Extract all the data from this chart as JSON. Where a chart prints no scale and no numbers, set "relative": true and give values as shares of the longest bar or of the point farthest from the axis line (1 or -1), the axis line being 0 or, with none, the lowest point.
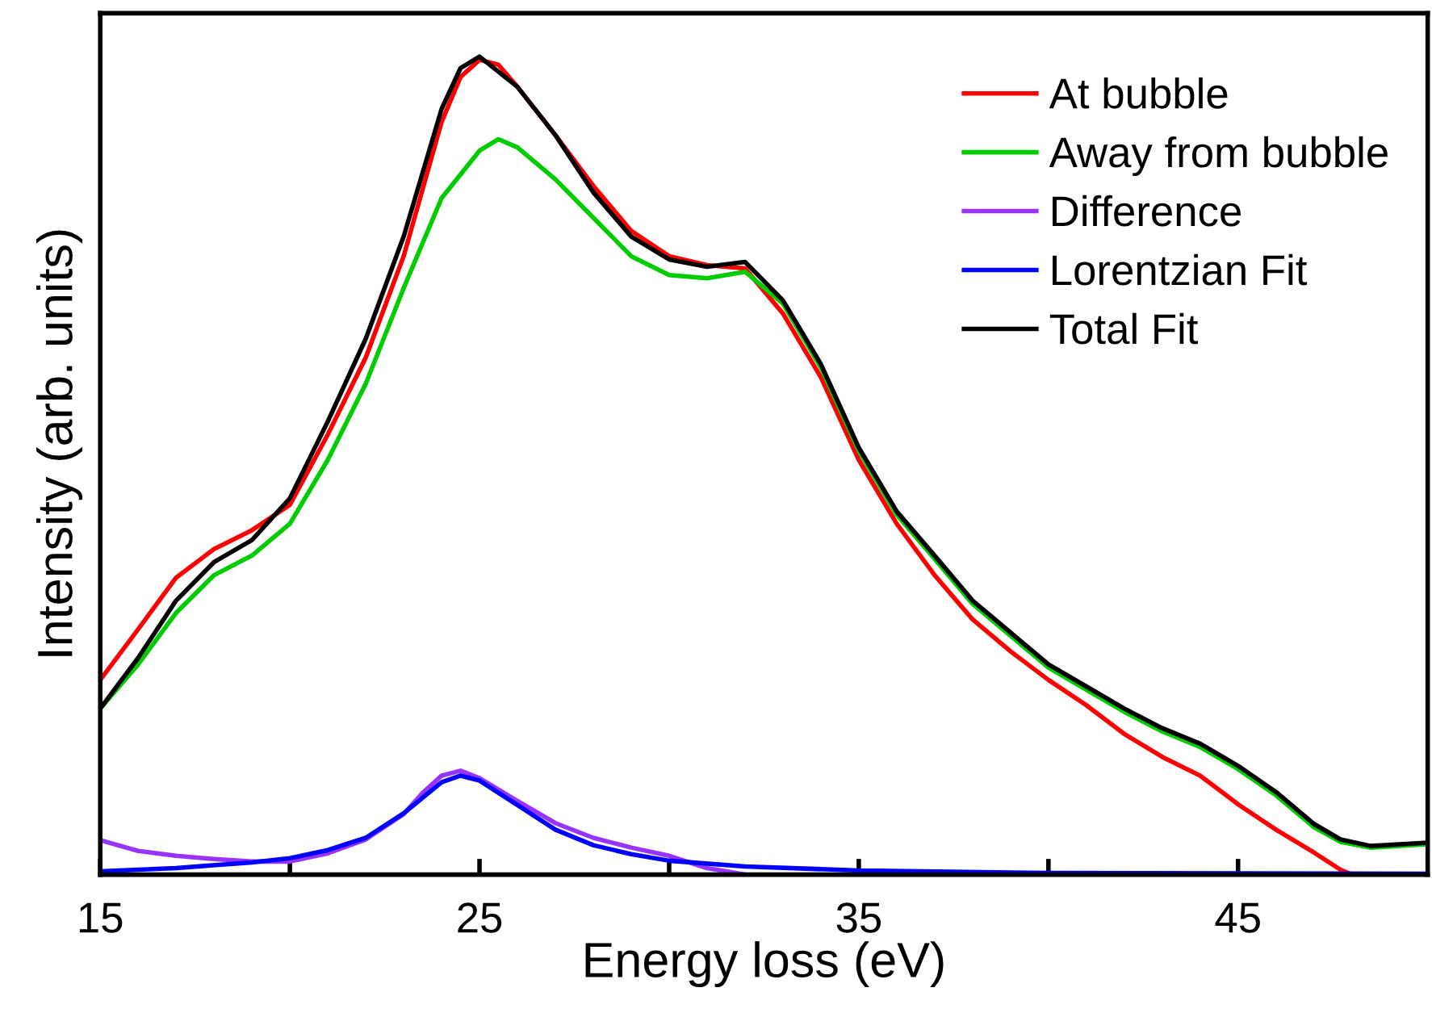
{
  "chart_data": {
    "type": "line",
    "xlabel": "Energy loss (eV)",
    "ylabel": "Intensity (arb. units)",
    "relative": true,
    "tick_labels": "x",
    "legend": "top right",
    "grid": false,
    "xlim": [
      15,
      50
    ],
    "xticks": [
      15,
      {
        "value": 20,
        "label": null
      },
      25,
      {
        "value": 30,
        "label": null
      },
      35,
      {
        "value": 40,
        "label": null
      },
      45
    ],
    "series": [
      {
        "name": "At bubble",
        "color": "#ff0000",
        "x": [
          15,
          16,
          17,
          18,
          19,
          20,
          21,
          22,
          23,
          24,
          24.5,
          25,
          25.5,
          26,
          27,
          28,
          29,
          30,
          31,
          32,
          33,
          34,
          35,
          36,
          37,
          38,
          39,
          40,
          41,
          42,
          43,
          44,
          45,
          46,
          47,
          47.7,
          48,
          50
        ],
        "values": [
          0.238,
          0.3,
          0.363,
          0.398,
          0.421,
          0.452,
          0.538,
          0.632,
          0.756,
          0.92,
          0.975,
          0.996,
          0.99,
          0.963,
          0.904,
          0.842,
          0.787,
          0.756,
          0.745,
          0.741,
          0.686,
          0.608,
          0.507,
          0.429,
          0.366,
          0.312,
          0.273,
          0.238,
          0.207,
          0.172,
          0.144,
          0.121,
          0.086,
          0.055,
          0.027,
          0.006,
          0,
          0
        ]
      },
      {
        "name": "Away from bubble",
        "color": "#00cc00",
        "x": [
          15,
          16,
          17,
          18,
          19,
          20,
          21,
          22,
          23,
          24,
          25,
          25.5,
          26,
          27,
          28,
          29,
          30,
          31,
          32,
          33,
          34,
          35,
          36,
          37,
          38,
          39,
          40,
          41,
          42,
          43,
          44,
          45,
          46,
          47,
          47.7,
          48.5,
          50
        ],
        "values": [
          0.203,
          0.257,
          0.32,
          0.366,
          0.39,
          0.429,
          0.507,
          0.6,
          0.717,
          0.827,
          0.885,
          0.899,
          0.889,
          0.85,
          0.803,
          0.756,
          0.733,
          0.729,
          0.737,
          0.698,
          0.62,
          0.518,
          0.44,
          0.386,
          0.331,
          0.292,
          0.253,
          0.226,
          0.199,
          0.175,
          0.156,
          0.129,
          0.097,
          0.058,
          0.04,
          0.033,
          0.037
        ]
      },
      {
        "name": "Difference",
        "color": "#9933ff",
        "x": [
          15,
          16,
          17,
          18,
          19,
          20,
          21,
          22,
          23,
          23.5,
          24,
          24.5,
          25,
          26,
          27,
          28,
          29,
          30,
          31,
          32
        ],
        "values": [
          0.042,
          0.029,
          0.023,
          0.019,
          0.016,
          0.016,
          0.026,
          0.043,
          0.074,
          0.1,
          0.121,
          0.127,
          0.118,
          0.09,
          0.063,
          0.045,
          0.033,
          0.023,
          0.008,
          0
        ]
      },
      {
        "name": "Lorentzian Fit",
        "color": "#0000ff",
        "x": [
          15,
          17,
          19,
          20,
          21,
          22,
          23,
          24,
          24.5,
          25,
          26,
          27,
          28,
          29,
          30,
          32,
          35,
          40,
          50
        ],
        "values": [
          0.004,
          0.008,
          0.015,
          0.02,
          0.03,
          0.045,
          0.075,
          0.113,
          0.121,
          0.115,
          0.085,
          0.055,
          0.036,
          0.025,
          0.017,
          0.01,
          0.005,
          0.002,
          0.001
        ]
      },
      {
        "name": "Total Fit",
        "color": "#000000",
        "x": [
          15,
          16,
          17,
          18,
          19,
          20,
          21,
          22,
          23,
          24,
          24.5,
          25,
          26,
          27,
          28,
          29,
          30,
          31,
          32,
          33,
          34,
          35,
          36,
          37,
          38,
          39,
          40,
          41,
          42,
          43,
          44,
          45,
          46,
          47,
          47.7,
          48.5,
          50
        ],
        "values": [
          0.203,
          0.265,
          0.335,
          0.382,
          0.409,
          0.46,
          0.554,
          0.655,
          0.78,
          0.936,
          0.986,
          1.0,
          0.963,
          0.904,
          0.834,
          0.78,
          0.752,
          0.743,
          0.749,
          0.702,
          0.624,
          0.522,
          0.444,
          0.39,
          0.335,
          0.296,
          0.257,
          0.23,
          0.203,
          0.179,
          0.16,
          0.133,
          0.101,
          0.062,
          0.043,
          0.035,
          0.039
        ]
      }
    ]
  }
}
